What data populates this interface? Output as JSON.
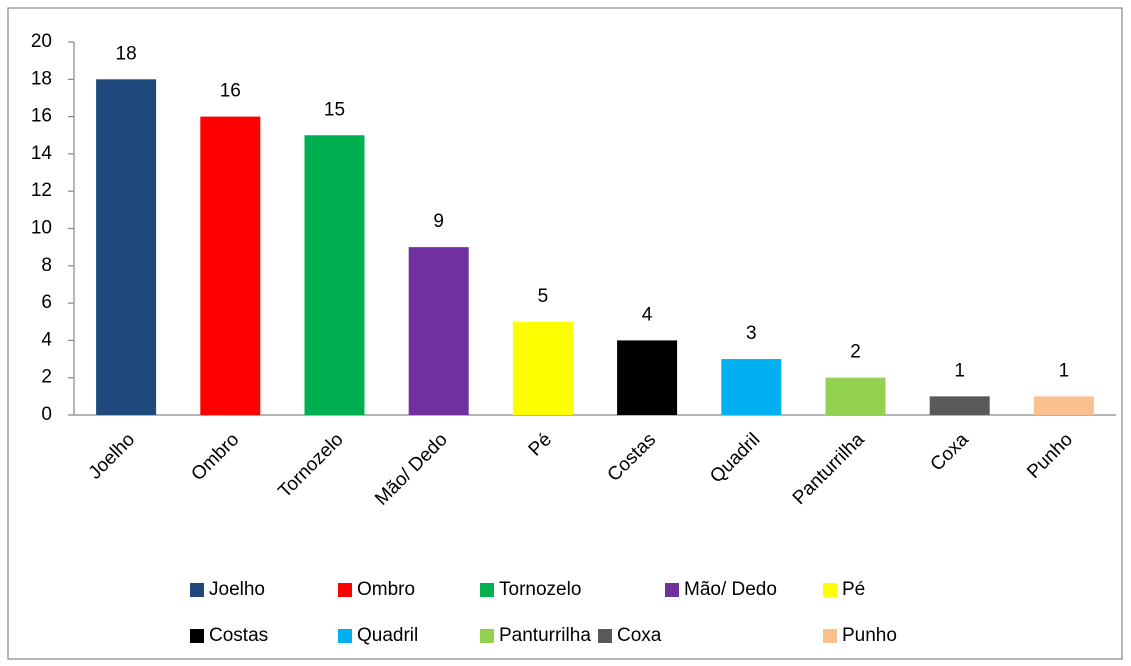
{
  "chart_data": {
    "type": "bar",
    "categories": [
      "Joelho",
      "Ombro",
      "Tornozelo",
      "Mão/ Dedo",
      "Pé",
      "Costas",
      "Quadril",
      "Panturrilha",
      "Coxa",
      "Punho"
    ],
    "values": [
      18,
      16,
      15,
      9,
      5,
      4,
      3,
      2,
      1,
      1
    ],
    "colors": [
      "#1f497d",
      "#ff0000",
      "#00b050",
      "#7030a0",
      "#ffff00",
      "#000000",
      "#00b0f0",
      "#92d050",
      "#595959",
      "#fac090"
    ],
    "ylim": [
      0,
      20
    ],
    "yticks": [
      0,
      2,
      4,
      6,
      8,
      10,
      12,
      14,
      16,
      18,
      20
    ],
    "grid": false,
    "legend": "bottom"
  }
}
